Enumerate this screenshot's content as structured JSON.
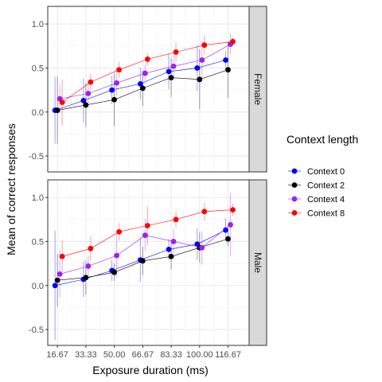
{
  "chart_data": {
    "type": "scatter",
    "xlabel": "Exposure duration (ms)",
    "ylabel": "Mean of correct responses",
    "x_ticks": [
      "16.67",
      "33.33",
      "50.00",
      "66.67",
      "83.33",
      "100.00",
      "116.67"
    ],
    "x_tick_values": [
      16.67,
      33.33,
      50.0,
      66.67,
      83.33,
      100.0,
      116.67
    ],
    "xlim": [
      11,
      129
    ],
    "y_ticks": [
      "-0.5",
      "0.0",
      "0.5",
      "1.0"
    ],
    "y_tick_values": [
      -0.5,
      0.0,
      0.5,
      1.0
    ],
    "ylim": [
      -0.68,
      1.2
    ],
    "grid": true,
    "legend": {
      "title": "Context length",
      "position": "right",
      "entries": [
        "Context 0",
        "Context 2",
        "Context 4",
        "Context 8"
      ]
    },
    "colors": {
      "Context 0": "#0000FF",
      "Context 2": "#000000",
      "Context 4": "#A020F0",
      "Context 8": "#FF0000"
    },
    "panels": [
      {
        "strip": "Female",
        "series": [
          {
            "name": "Context 0",
            "x": [
              16.67,
              33.33,
              50.0,
              66.67,
              83.33,
              100.0,
              116.67
            ],
            "y": [
              0.02,
              0.13,
              0.25,
              0.32,
              0.46,
              0.5,
              0.59
            ],
            "err": [
              0.38,
              0.25,
              0.16,
              0.18,
              0.2,
              0.26,
              0.1
            ]
          },
          {
            "name": "Context 2",
            "x": [
              16.67,
              33.33,
              50.0,
              66.67,
              83.33,
              100.0,
              116.67
            ],
            "y": [
              0.02,
              0.08,
              0.14,
              0.27,
              0.39,
              0.37,
              0.48
            ],
            "err": [
              0.38,
              0.25,
              0.3,
              0.2,
              0.22,
              0.34,
              0.32
            ]
          },
          {
            "name": "Context 4",
            "x": [
              16.67,
              33.33,
              50.0,
              66.67,
              83.33,
              100.0,
              116.67
            ],
            "y": [
              0.15,
              0.21,
              0.33,
              0.44,
              0.52,
              0.59,
              0.77
            ],
            "err": [
              0.16,
              0.12,
              0.14,
              0.1,
              0.14,
              0.21,
              0.12
            ]
          },
          {
            "name": "Context 8",
            "x": [
              16.67,
              33.33,
              50.0,
              66.67,
              83.33,
              100.0,
              116.67
            ],
            "y": [
              0.11,
              0.34,
              0.48,
              0.6,
              0.68,
              0.76,
              0.8
            ],
            "err": [
              0.26,
              0.09,
              0.09,
              0.07,
              0.11,
              0.11,
              0.04
            ]
          }
        ]
      },
      {
        "strip": "Male",
        "series": [
          {
            "name": "Context 0",
            "x": [
              16.67,
              33.33,
              50.0,
              66.67,
              83.33,
              100.0,
              116.67
            ],
            "y": [
              0.0,
              0.07,
              0.17,
              0.29,
              0.41,
              0.47,
              0.63
            ],
            "err": [
              0.62,
              0.2,
              0.12,
              0.25,
              0.12,
              0.18,
              0.13
            ]
          },
          {
            "name": "Context 2",
            "x": [
              16.67,
              33.33,
              50.0,
              66.67,
              83.33,
              100.0,
              116.67
            ],
            "y": [
              0.06,
              0.09,
              0.15,
              0.28,
              0.33,
              0.43,
              0.53
            ],
            "err": [
              0.3,
              0.19,
              0.1,
              0.16,
              0.15,
              0.17,
              0.08
            ]
          },
          {
            "name": "Context 4",
            "x": [
              16.67,
              33.33,
              50.0,
              66.67,
              83.33,
              100.0,
              116.67
            ],
            "y": [
              0.13,
              0.22,
              0.34,
              0.57,
              0.5,
              0.43,
              0.69
            ],
            "err": [
              0.27,
              0.12,
              0.25,
              0.18,
              0.14,
              0.19,
              0.36
            ]
          },
          {
            "name": "Context 8",
            "x": [
              16.67,
              33.33,
              50.0,
              66.67,
              83.33,
              100.0,
              116.67
            ],
            "y": [
              0.33,
              0.42,
              0.61,
              0.68,
              0.75,
              0.84,
              0.86
            ],
            "err": [
              0.18,
              0.14,
              0.1,
              0.22,
              0.09,
              0.1,
              0.07
            ]
          }
        ]
      }
    ]
  }
}
